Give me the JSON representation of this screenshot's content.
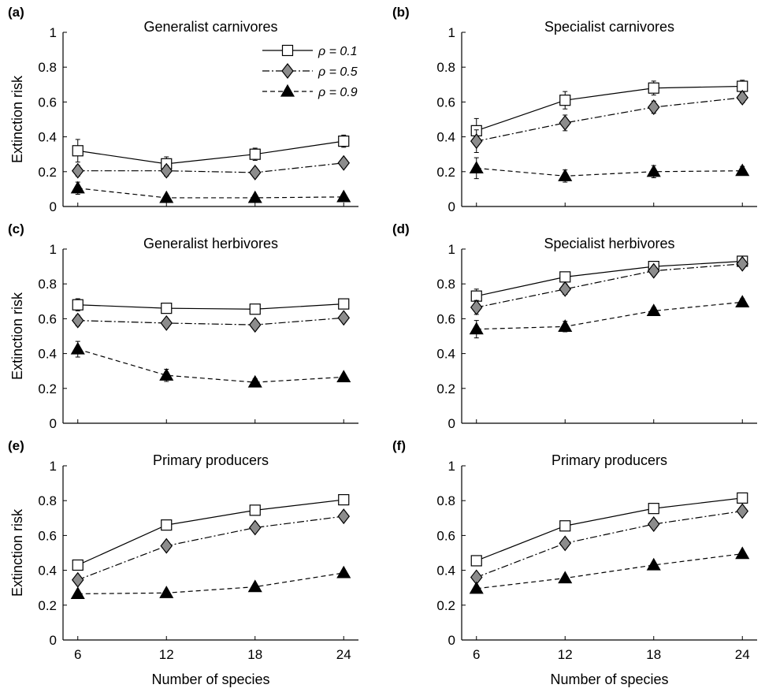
{
  "chart_data": {
    "type": "line",
    "x": [
      6,
      12,
      18,
      24
    ],
    "xticks": [
      "6",
      "12",
      "18",
      "24"
    ],
    "xlim": [
      5,
      25
    ],
    "ylim": [
      0,
      1
    ],
    "yticks": [
      "0",
      "0.2",
      "0.4",
      "0.6",
      "0.8",
      "1"
    ],
    "xlabel": "Number of species",
    "ylabel": "Extinction risk",
    "legend": {
      "location": "top-right of panel (a)",
      "entries": [
        "ρ = 0.1",
        "ρ = 0.5",
        "ρ = 0.9"
      ]
    },
    "series_styles": [
      {
        "name": "ρ = 0.1",
        "line": "solid",
        "marker": "square",
        "fill": "#ffffff"
      },
      {
        "name": "ρ = 0.5",
        "line": "dash-dot",
        "marker": "diamond",
        "fill": "#8c8c8c"
      },
      {
        "name": "ρ = 0.9",
        "line": "dashed",
        "marker": "triangle",
        "fill": "#000000"
      }
    ],
    "panels": [
      {
        "label": "(a)",
        "title": "Generalist carnivores",
        "series": [
          {
            "name": "ρ = 0.1",
            "values": [
              0.32,
              0.245,
              0.3,
              0.375
            ],
            "errors": [
              0.065,
              0.04,
              0.035,
              0.035
            ]
          },
          {
            "name": "ρ = 0.5",
            "values": [
              0.205,
              0.205,
              0.195,
              0.25
            ],
            "errors": [
              0.03,
              0.03,
              0.025,
              0.025
            ]
          },
          {
            "name": "ρ = 0.9",
            "values": [
              0.105,
              0.05,
              0.05,
              0.055
            ],
            "errors": [
              0.035,
              0.015,
              0.01,
              0.01
            ]
          }
        ]
      },
      {
        "label": "(b)",
        "title": "Specialist carnivores",
        "series": [
          {
            "name": "ρ = 0.1",
            "values": [
              0.435,
              0.61,
              0.68,
              0.69
            ],
            "errors": [
              0.07,
              0.05,
              0.04,
              0.035
            ]
          },
          {
            "name": "ρ = 0.5",
            "values": [
              0.375,
              0.48,
              0.57,
              0.625
            ],
            "errors": [
              0.065,
              0.045,
              0.035,
              0.03
            ]
          },
          {
            "name": "ρ = 0.9",
            "values": [
              0.22,
              0.175,
              0.2,
              0.205
            ],
            "errors": [
              0.06,
              0.035,
              0.035,
              0.025
            ]
          }
        ]
      },
      {
        "label": "(c)",
        "title": "Generalist herbivores",
        "series": [
          {
            "name": "ρ = 0.1",
            "values": [
              0.68,
              0.66,
              0.655,
              0.685
            ],
            "errors": [
              0.035,
              0.025,
              0.02,
              0.02
            ]
          },
          {
            "name": "ρ = 0.5",
            "values": [
              0.59,
              0.575,
              0.565,
              0.605
            ],
            "errors": [
              0.03,
              0.025,
              0.02,
              0.02
            ]
          },
          {
            "name": "ρ = 0.9",
            "values": [
              0.425,
              0.275,
              0.235,
              0.265
            ],
            "errors": [
              0.045,
              0.035,
              0.02,
              0.015
            ]
          }
        ]
      },
      {
        "label": "(d)",
        "title": "Specialist herbivores",
        "series": [
          {
            "name": "ρ = 0.1",
            "values": [
              0.73,
              0.84,
              0.9,
              0.93
            ],
            "errors": [
              0.04,
              0.025,
              0.015,
              0.015
            ]
          },
          {
            "name": "ρ = 0.5",
            "values": [
              0.665,
              0.77,
              0.875,
              0.915
            ],
            "errors": [
              0.04,
              0.03,
              0.02,
              0.015
            ]
          },
          {
            "name": "ρ = 0.9",
            "values": [
              0.54,
              0.555,
              0.645,
              0.695
            ],
            "errors": [
              0.05,
              0.03,
              0.02,
              0.02
            ]
          }
        ]
      },
      {
        "label": "(e)",
        "title": "Primary producers",
        "series": [
          {
            "name": "ρ = 0.1",
            "values": [
              0.43,
              0.66,
              0.745,
              0.805
            ],
            "errors": [
              0.01,
              0.01,
              0.01,
              0.01
            ]
          },
          {
            "name": "ρ = 0.5",
            "values": [
              0.345,
              0.54,
              0.645,
              0.71
            ],
            "errors": [
              0.01,
              0.01,
              0.01,
              0.01
            ]
          },
          {
            "name": "ρ = 0.9",
            "values": [
              0.265,
              0.27,
              0.305,
              0.385
            ],
            "errors": [
              0.01,
              0.01,
              0.01,
              0.01
            ]
          }
        ]
      },
      {
        "label": "(f)",
        "title": "Primary producers",
        "series": [
          {
            "name": "ρ = 0.1",
            "values": [
              0.455,
              0.655,
              0.755,
              0.815
            ],
            "errors": [
              0.01,
              0.01,
              0.01,
              0.01
            ]
          },
          {
            "name": "ρ = 0.5",
            "values": [
              0.36,
              0.555,
              0.665,
              0.74
            ],
            "errors": [
              0.01,
              0.01,
              0.01,
              0.01
            ]
          },
          {
            "name": "ρ = 0.9",
            "values": [
              0.295,
              0.355,
              0.43,
              0.495
            ],
            "errors": [
              0.01,
              0.01,
              0.01,
              0.01
            ]
          }
        ]
      }
    ]
  }
}
